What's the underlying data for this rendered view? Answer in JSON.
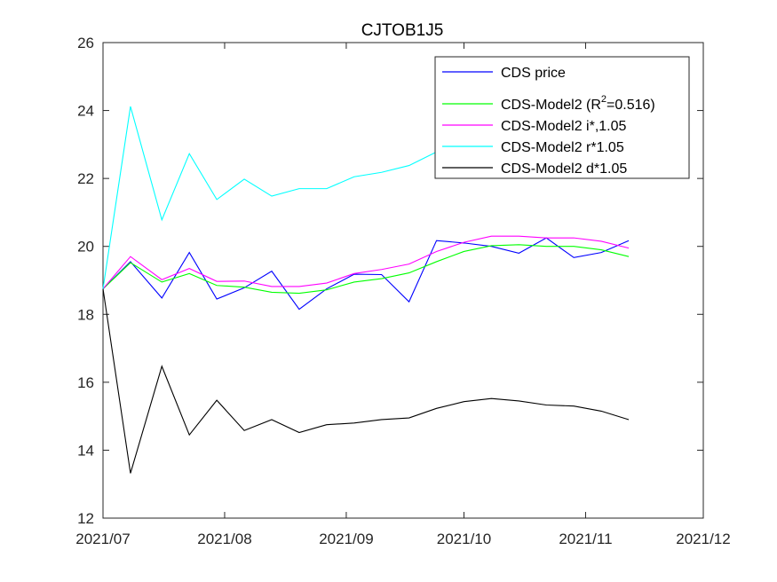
{
  "chart_data": {
    "type": "line",
    "title": "CJTOB1J5",
    "xlabel": "",
    "ylabel": "",
    "x_ticks": [
      "2021/07",
      "2021/08",
      "2021/09",
      "2021/10",
      "2021/11",
      "2021/12"
    ],
    "xlim": [
      "2021-07-01",
      "2021-12-01"
    ],
    "ylim": [
      12,
      26
    ],
    "y_ticks": [
      12,
      14,
      16,
      18,
      20,
      22,
      24,
      26
    ],
    "grid": false,
    "legend_position": "top-right",
    "x": [
      "2021-07-01",
      "2021-07-08",
      "2021-07-16",
      "2021-07-23",
      "2021-07-30",
      "2021-08-06",
      "2021-08-13",
      "2021-08-20",
      "2021-08-27",
      "2021-09-03",
      "2021-09-10",
      "2021-09-17",
      "2021-09-24",
      "2021-10-01",
      "2021-10-08",
      "2021-10-15",
      "2021-10-22",
      "2021-10-29",
      "2021-11-05",
      "2021-11-12"
    ],
    "series": [
      {
        "name": "CDS price",
        "color": "#0000ff",
        "values": [
          18.75,
          19.55,
          18.48,
          19.82,
          18.45,
          18.78,
          19.27,
          18.15,
          18.75,
          19.18,
          19.17,
          18.37,
          20.17,
          20.1,
          20.0,
          19.8,
          20.25,
          19.67,
          19.82,
          20.17
        ]
      },
      {
        "name_parts": [
          "CDS-Model2 (R",
          "2",
          "=0.516)"
        ],
        "color": "#00ff00",
        "values": [
          18.75,
          19.52,
          18.95,
          19.2,
          18.85,
          18.8,
          18.65,
          18.62,
          18.72,
          18.95,
          19.05,
          19.22,
          19.55,
          19.85,
          20.02,
          20.05,
          20.0,
          20.0,
          19.9,
          19.7
        ]
      },
      {
        "name": "CDS-Model2 i*,1.05",
        "color": "#ff00ff",
        "values": [
          18.75,
          19.7,
          19.02,
          19.35,
          18.97,
          18.98,
          18.82,
          18.82,
          18.92,
          19.2,
          19.32,
          19.48,
          19.85,
          20.12,
          20.3,
          20.3,
          20.25,
          20.25,
          20.15,
          19.95
        ]
      },
      {
        "name": "CDS-Model2 r*1.05",
        "color": "#00ffff",
        "values": [
          18.75,
          24.12,
          20.78,
          22.73,
          21.38,
          21.98,
          21.48,
          21.7,
          21.7,
          22.05,
          22.18,
          22.38,
          22.78,
          null,
          null,
          null,
          null,
          null,
          null,
          null
        ]
      },
      {
        "name": "CDS-Model2 d*1.05",
        "color": "#000000",
        "values": [
          18.75,
          13.32,
          16.47,
          14.45,
          15.47,
          14.58,
          14.9,
          14.52,
          14.75,
          14.8,
          14.9,
          14.95,
          15.23,
          15.43,
          15.52,
          15.45,
          15.33,
          15.3,
          15.15,
          14.9
        ]
      }
    ]
  }
}
